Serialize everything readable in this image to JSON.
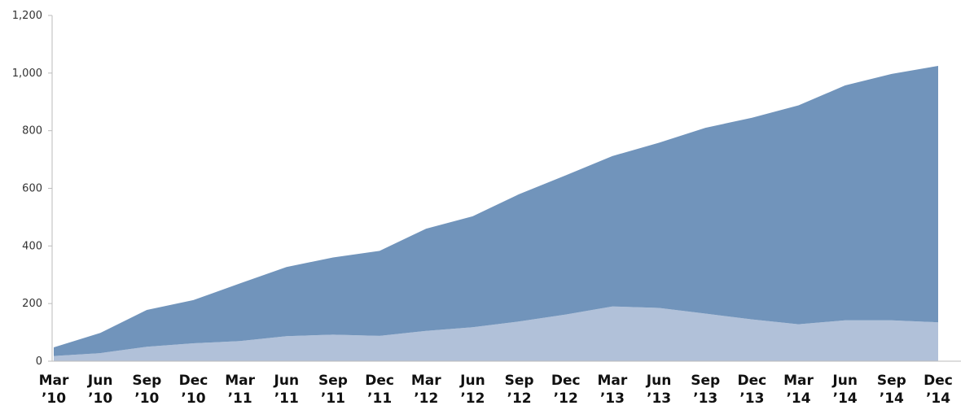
{
  "chart_data": {
    "type": "area",
    "stacked": true,
    "categories": [
      [
        "Mar",
        "’10"
      ],
      [
        "Jun",
        "’10"
      ],
      [
        "Sep",
        "’10"
      ],
      [
        "Dec",
        "’10"
      ],
      [
        "Mar",
        "’11"
      ],
      [
        "Jun",
        "’11"
      ],
      [
        "Sep",
        "’11"
      ],
      [
        "Dec",
        "’11"
      ],
      [
        "Mar",
        "’12"
      ],
      [
        "Jun",
        "’12"
      ],
      [
        "Sep",
        "’12"
      ],
      [
        "Dec",
        "’12"
      ],
      [
        "Mar",
        "’13"
      ],
      [
        "Jun",
        "’13"
      ],
      [
        "Sep",
        "’13"
      ],
      [
        "Dec",
        "’13"
      ],
      [
        "Mar",
        "’14"
      ],
      [
        "Jun",
        "’14"
      ],
      [
        "Sep",
        "’14"
      ],
      [
        "Dec",
        "’14"
      ]
    ],
    "series": [
      {
        "color": "#b1c1d9",
        "values": [
          18,
          28,
          50,
          62,
          70,
          87,
          92,
          88,
          105,
          118,
          138,
          162,
          190,
          185,
          165,
          145,
          128,
          142,
          142,
          135
        ]
      },
      {
        "color": "#7194bb",
        "values": [
          30,
          70,
          128,
          150,
          200,
          240,
          268,
          295,
          355,
          385,
          442,
          483,
          522,
          573,
          645,
          700,
          760,
          815,
          855,
          890
        ]
      }
    ],
    "totals": [
      48,
      98,
      178,
      212,
      270,
      327,
      360,
      383,
      460,
      503,
      580,
      645,
      712,
      758,
      810,
      845,
      888,
      957,
      997,
      1025
    ],
    "ylim": [
      0,
      1200
    ],
    "yticks": [
      0,
      200,
      400,
      600,
      800,
      1000,
      1200
    ],
    "ytick_labels": [
      "0",
      "200",
      "400",
      "600",
      "800",
      "1,000",
      "1,200"
    ],
    "grid": false,
    "title": "",
    "xlabel": "",
    "ylabel": ""
  }
}
